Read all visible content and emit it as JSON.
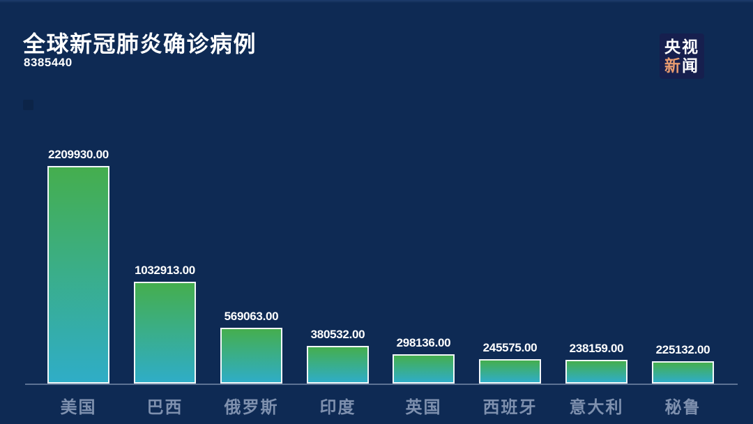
{
  "page": {
    "background_color": "#0e2a54",
    "baseline_color": "#9cadc8"
  },
  "header": {
    "title": "全球新冠肺炎确诊病例",
    "total": "8385440"
  },
  "logo": {
    "char_top_left": "央",
    "char_top_right": "视",
    "char_bottom_left": "新",
    "char_bottom_right": "闻",
    "bg_color": "#161f4e",
    "accent_color": "#e89b70",
    "text_color": "#ffffff"
  },
  "chart_data": {
    "type": "bar",
    "title": "全球新冠肺炎确诊病例",
    "subtitle_total": "8385440",
    "categories": [
      "美国",
      "巴西",
      "俄罗斯",
      "印度",
      "英国",
      "西班牙",
      "意大利",
      "秘鲁"
    ],
    "values": [
      2209930,
      1032913,
      569063,
      380532,
      298136,
      245575,
      238159,
      225132
    ],
    "value_labels": [
      "2209930.00",
      "1032913.00",
      "569063.00",
      "380532.00",
      "298136.00",
      "245575.00",
      "238159.00",
      "225132.00"
    ],
    "xlabel": "",
    "ylabel": "",
    "ylim": [
      0,
      2209930
    ],
    "grid": false,
    "legend": "none",
    "bar_gradient_top": "#45ae4e",
    "bar_gradient_bottom": "#2fadc7",
    "bar_border_color": "#f2f8fa",
    "value_label_color": "#ffffff",
    "category_label_color": "#7e90ae"
  }
}
